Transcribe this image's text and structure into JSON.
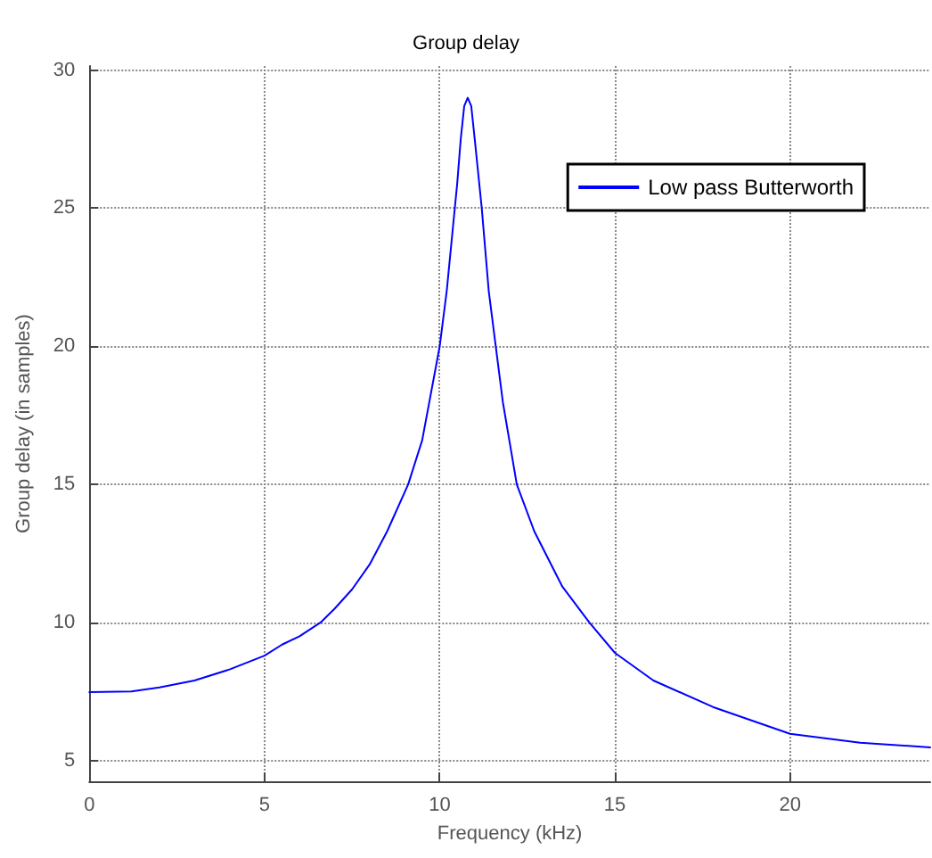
{
  "chart_data": {
    "type": "line",
    "title": "Group delay",
    "xlabel": "Frequency (kHz)",
    "ylabel": "Group delay (in samples)",
    "x": [
      0,
      1.2,
      2,
      3,
      4,
      5,
      5.5,
      6,
      6.6,
      7,
      7.5,
      8,
      8.5,
      9.1,
      9.5,
      10,
      10.2,
      10.5,
      10.6,
      10.7,
      10.8,
      10.9,
      11,
      11.2,
      11.4,
      11.6,
      11.8,
      12.2,
      12.7,
      13.5,
      14.27,
      15,
      16.1,
      17.8,
      20,
      22,
      24
    ],
    "series": [
      {
        "name": "Low pass Butterworth",
        "color": "#0000ff",
        "values": [
          7.48,
          7.5,
          7.65,
          7.9,
          8.3,
          8.8,
          9.2,
          9.5,
          10,
          10.5,
          11.2,
          12.1,
          13.3,
          15,
          16.6,
          20,
          22,
          25.9,
          27.5,
          28.7,
          29,
          28.7,
          27.5,
          25,
          22,
          20,
          18,
          15,
          13.3,
          11.3,
          10,
          8.9,
          7.9,
          6.94,
          5.97,
          5.65,
          5.48
        ]
      }
    ],
    "xlim": [
      0,
      24
    ],
    "ylim": [
      4.25,
      30.15
    ],
    "xticks": [
      0,
      5,
      10,
      15,
      20
    ],
    "yticks": [
      5,
      10,
      15,
      20,
      25,
      30
    ],
    "grid": true,
    "legend": "top right",
    "line_style": "solid",
    "marker": "none"
  }
}
